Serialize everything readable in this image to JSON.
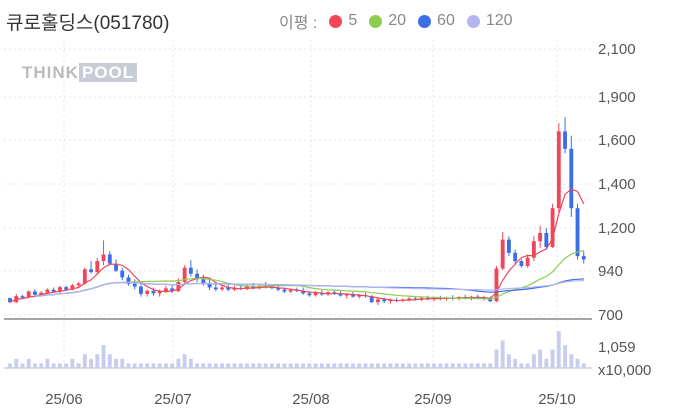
{
  "title": "큐로홀딩스(051780)",
  "legend": {
    "label": "이평 :",
    "items": [
      {
        "name": "5",
        "color": "#f0465a"
      },
      {
        "name": "20",
        "color": "#8ccd50"
      },
      {
        "name": "60",
        "color": "#3c6ee6"
      },
      {
        "name": "120",
        "color": "#b4b4f0"
      }
    ]
  },
  "logo": {
    "part1": "THINK",
    "part2": "POOL"
  },
  "chart_data": {
    "type": "candlestick",
    "price_ticks": [
      "2,100",
      "1,900",
      "1,600",
      "1,400",
      "1,200",
      "940",
      "700"
    ],
    "volume_ticks": [
      "1,059",
      "x10,000"
    ],
    "x_ticks": [
      "25/06",
      "25/07",
      "25/08",
      "25/09",
      "25/10"
    ],
    "candles": [
      [
        792,
        795,
        765,
        770
      ],
      [
        770,
        815,
        765,
        803
      ],
      [
        803,
        810,
        790,
        795
      ],
      [
        795,
        835,
        790,
        828
      ],
      [
        828,
        840,
        805,
        810
      ],
      [
        810,
        830,
        800,
        822
      ],
      [
        822,
        845,
        815,
        838
      ],
      [
        838,
        850,
        820,
        826
      ],
      [
        826,
        860,
        820,
        852
      ],
      [
        852,
        860,
        830,
        838
      ],
      [
        838,
        870,
        835,
        862
      ],
      [
        862,
        880,
        850,
        872
      ],
      [
        872,
        960,
        865,
        950
      ],
      [
        950,
        1000,
        925,
        935
      ],
      [
        935,
        1020,
        920,
        1000
      ],
      [
        1000,
        1125,
        975,
        1040
      ],
      [
        1040,
        1060,
        975,
        985
      ],
      [
        985,
        1010,
        935,
        942
      ],
      [
        942,
        960,
        890,
        905
      ],
      [
        905,
        920,
        860,
        870
      ],
      [
        870,
        895,
        840,
        855
      ],
      [
        855,
        870,
        800,
        815
      ],
      [
        815,
        840,
        800,
        832
      ],
      [
        832,
        850,
        805,
        818
      ],
      [
        818,
        840,
        800,
        830
      ],
      [
        830,
        860,
        820,
        845
      ],
      [
        845,
        860,
        820,
        830
      ],
      [
        830,
        900,
        825,
        880
      ],
      [
        880,
        975,
        870,
        960
      ],
      [
        960,
        1005,
        910,
        925
      ],
      [
        925,
        950,
        880,
        895
      ],
      [
        895,
        920,
        860,
        875
      ],
      [
        875,
        900,
        835,
        850
      ],
      [
        850,
        870,
        830,
        840
      ],
      [
        840,
        860,
        830,
        850
      ],
      [
        850,
        865,
        830,
        838
      ],
      [
        838,
        860,
        830,
        848
      ],
      [
        848,
        862,
        835,
        842
      ],
      [
        842,
        870,
        835,
        858
      ],
      [
        858,
        875,
        840,
        845
      ],
      [
        845,
        870,
        840,
        860
      ],
      [
        860,
        880,
        845,
        852
      ],
      [
        852,
        870,
        840,
        848
      ],
      [
        848,
        860,
        830,
        838
      ],
      [
        838,
        850,
        820,
        828
      ],
      [
        828,
        845,
        820,
        836
      ],
      [
        836,
        850,
        825,
        832
      ],
      [
        832,
        850,
        810,
        818
      ],
      [
        818,
        830,
        800,
        808
      ],
      [
        808,
        830,
        800,
        822
      ],
      [
        822,
        835,
        805,
        812
      ],
      [
        812,
        830,
        805,
        824
      ],
      [
        824,
        835,
        810,
        816
      ],
      [
        816,
        830,
        800,
        806
      ],
      [
        806,
        820,
        790,
        812
      ],
      [
        812,
        825,
        795,
        800
      ],
      [
        800,
        815,
        790,
        808
      ],
      [
        808,
        822,
        795,
        803
      ],
      [
        803,
        810,
        765,
        770
      ],
      [
        770,
        790,
        755,
        785
      ],
      [
        785,
        795,
        765,
        775
      ],
      [
        775,
        790,
        762,
        782
      ],
      [
        782,
        795,
        770,
        778
      ],
      [
        778,
        790,
        770,
        784
      ],
      [
        784,
        800,
        775,
        790
      ],
      [
        790,
        800,
        778,
        785
      ],
      [
        785,
        800,
        775,
        793
      ],
      [
        793,
        805,
        780,
        786
      ],
      [
        786,
        800,
        775,
        795
      ],
      [
        795,
        805,
        780,
        788
      ],
      [
        788,
        800,
        778,
        795
      ],
      [
        795,
        808,
        780,
        790
      ],
      [
        790,
        802,
        780,
        798
      ],
      [
        798,
        810,
        785,
        792
      ],
      [
        792,
        805,
        780,
        800
      ],
      [
        800,
        810,
        785,
        795
      ],
      [
        795,
        805,
        780,
        790
      ],
      [
        790,
        800,
        770,
        775
      ],
      [
        775,
        970,
        770,
        955
      ],
      [
        955,
        1175,
        945,
        1130
      ],
      [
        1130,
        1150,
        1030,
        1050
      ],
      [
        1050,
        1070,
        985,
        1000
      ],
      [
        1000,
        1010,
        960,
        970
      ],
      [
        970,
        1040,
        960,
        1020
      ],
      [
        1020,
        1150,
        1000,
        1120
      ],
      [
        1120,
        1210,
        1080,
        1170
      ],
      [
        1170,
        1200,
        1070,
        1085
      ],
      [
        1085,
        1310,
        1080,
        1290
      ],
      [
        1290,
        1720,
        1270,
        1660
      ],
      [
        1660,
        1760,
        1540,
        1560
      ],
      [
        1560,
        1630,
        1250,
        1290
      ],
      [
        1290,
        1310,
        1010,
        1030
      ],
      [
        1030,
        1060,
        985,
        1010
      ]
    ],
    "ma_windows": [
      5,
      20,
      60,
      120
    ],
    "volume": [
      1,
      2,
      1,
      2,
      1,
      1,
      2,
      1,
      1,
      1,
      2,
      1,
      3,
      2,
      3,
      5,
      3,
      2,
      2,
      1,
      1,
      1,
      1,
      1,
      1,
      1,
      1,
      2,
      3,
      2,
      1,
      1,
      1,
      1,
      1,
      1,
      1,
      1,
      1,
      1,
      1,
      1,
      1,
      1,
      1,
      1,
      1,
      1,
      1,
      1,
      1,
      1,
      1,
      1,
      1,
      1,
      1,
      1,
      1,
      1,
      1,
      1,
      1,
      1,
      1,
      1,
      1,
      1,
      1,
      1,
      1,
      1,
      1,
      1,
      1,
      1,
      1,
      1,
      4,
      6,
      3,
      2,
      1,
      1,
      3,
      4,
      2,
      4,
      8,
      5,
      3,
      2,
      1
    ],
    "volume_max": 10
  }
}
